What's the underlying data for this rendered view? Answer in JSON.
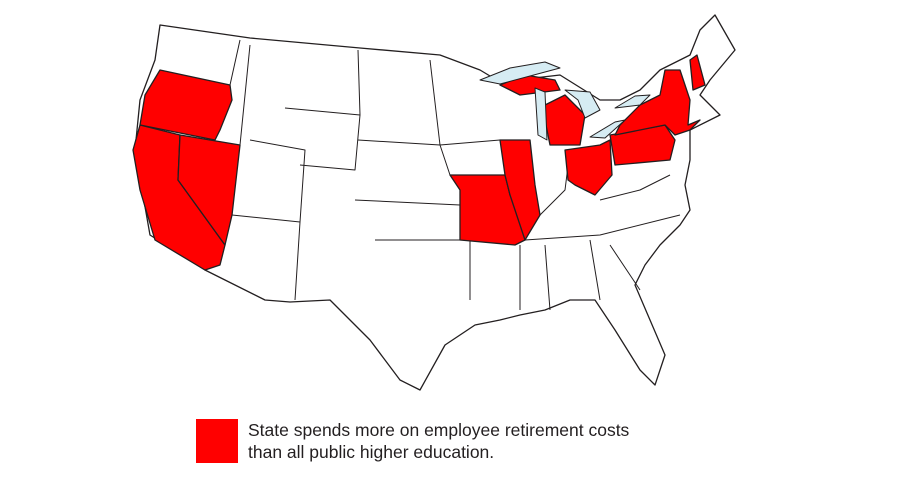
{
  "colors": {
    "highlight": "#ff0000",
    "state_fill": "#ffffff",
    "border": "#231f20",
    "lakes": "#d6ecf3"
  },
  "highlighted_states": [
    "Oregon",
    "California",
    "Nevada",
    "Missouri",
    "Illinois",
    "Michigan",
    "Ohio",
    "Pennsylvania",
    "New York",
    "New Hampshire"
  ],
  "legend": {
    "line1": "State spends more on employee retirement costs",
    "line2": "than all public higher education."
  }
}
